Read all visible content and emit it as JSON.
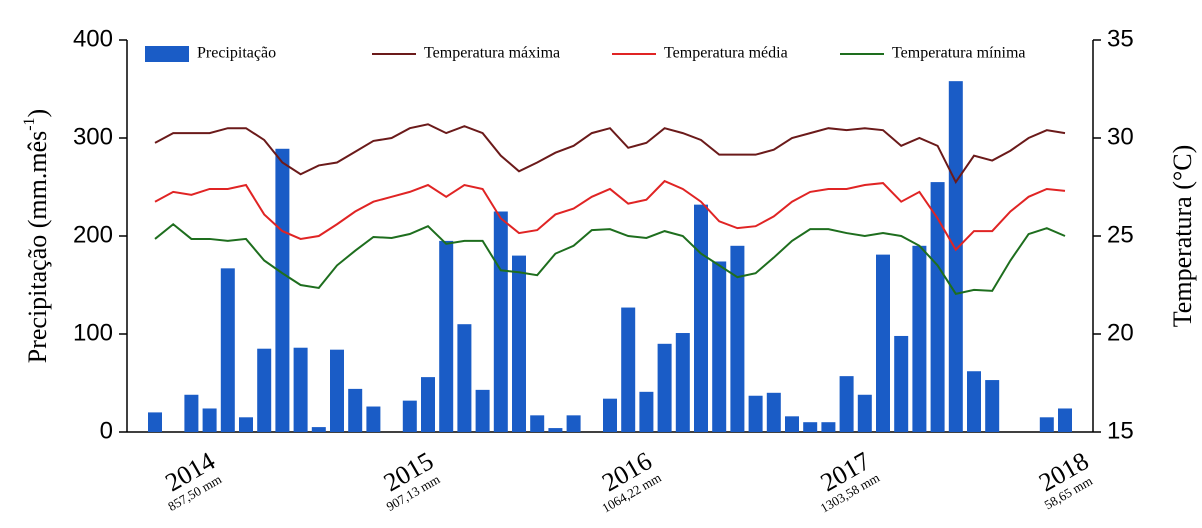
{
  "chart_data": {
    "type": "bar-line",
    "ylabel": {
      "text": "Precipitação (mm.mês",
      "sup": "-1",
      "close": ")"
    },
    "y2label": "Temperatura (°C)",
    "categories": [
      null,
      null,
      "2014",
      null,
      null,
      null,
      null,
      null,
      null,
      null,
      null,
      null,
      null,
      null,
      "2015",
      null,
      null,
      null,
      null,
      null,
      null,
      null,
      null,
      null,
      null,
      null,
      "2016",
      null,
      null,
      null,
      null,
      null,
      null,
      null,
      null,
      null,
      null,
      null,
      "2017",
      null,
      null,
      null,
      null,
      null,
      null,
      null,
      null,
      null,
      null,
      null,
      "2018"
    ],
    "category_sublabels": [
      null,
      null,
      "857,50 mm",
      null,
      null,
      null,
      null,
      null,
      null,
      null,
      null,
      null,
      null,
      null,
      "907,13 mm",
      null,
      null,
      null,
      null,
      null,
      null,
      null,
      null,
      null,
      null,
      null,
      "1064,22 mm",
      null,
      null,
      null,
      null,
      null,
      null,
      null,
      null,
      null,
      null,
      null,
      "1303,58 mm",
      null,
      null,
      null,
      null,
      null,
      null,
      null,
      null,
      null,
      null,
      null,
      "58,65 mm"
    ],
    "ylim": [
      0,
      400
    ],
    "yticks": [
      0,
      100,
      200,
      300,
      400
    ],
    "y2lim": [
      15,
      35
    ],
    "y2ticks": [
      15,
      20,
      25,
      30,
      35
    ],
    "series": [
      {
        "name": "Precipitação",
        "kind": "bar",
        "color": "#1a5cc6",
        "values": [
          20,
          0,
          38,
          24,
          167,
          15,
          85,
          289,
          86,
          5,
          84,
          44,
          26,
          0,
          32,
          56,
          195,
          110,
          43,
          225,
          180,
          17,
          4,
          17,
          0,
          34,
          127,
          41,
          90,
          101,
          232,
          174,
          190,
          37,
          40,
          16,
          10,
          10,
          57,
          38,
          181,
          98,
          190,
          255,
          358,
          62,
          53,
          0,
          0,
          15,
          24
        ]
      },
      {
        "name": "Temperatura máxima",
        "kind": "line",
        "axis": "y2",
        "color": "#6b1a1a",
        "values": [
          29.75,
          30.25,
          30.25,
          30.25,
          30.5,
          30.5,
          29.9,
          28.75,
          28.15,
          28.6,
          28.75,
          29.3,
          29.85,
          30,
          30.5,
          30.7,
          30.25,
          30.6,
          30.25,
          29.1,
          28.3,
          28.75,
          29.25,
          29.6,
          30.25,
          30.5,
          29.5,
          29.75,
          30.5,
          30.25,
          29.9,
          29.15,
          29.15,
          29.15,
          29.4,
          30,
          30.25,
          30.5,
          30.4,
          30.5,
          30.4,
          29.6,
          30,
          29.6,
          27.75,
          29.1,
          28.85,
          29.35,
          30,
          30.4,
          30.25
        ]
      },
      {
        "name": "Temperatura média",
        "kind": "line",
        "axis": "y2",
        "color": "#e02424",
        "values": [
          26.75,
          27.25,
          27.1,
          27.4,
          27.4,
          27.6,
          26.1,
          25.25,
          24.85,
          25,
          25.6,
          26.25,
          26.75,
          27,
          27.25,
          27.6,
          27,
          27.6,
          27.4,
          25.9,
          25.15,
          25.3,
          26.1,
          26.4,
          27,
          27.4,
          26.65,
          26.85,
          27.8,
          27.4,
          26.75,
          25.75,
          25.4,
          25.5,
          26,
          26.75,
          27.25,
          27.4,
          27.4,
          27.6,
          27.7,
          26.75,
          27.25,
          25.9,
          24.3,
          25.25,
          25.25,
          26.25,
          27,
          27.4,
          27.3
        ]
      },
      {
        "name": "Temperatura mínima",
        "kind": "line",
        "axis": "y2",
        "color": "#1e6e1e",
        "values": [
          24.85,
          25.6,
          24.85,
          24.85,
          24.75,
          24.85,
          23.75,
          23.1,
          22.5,
          22.35,
          23.5,
          24.25,
          24.95,
          24.9,
          25.1,
          25.5,
          24.6,
          24.75,
          24.75,
          23.25,
          23.15,
          23,
          24.1,
          24.5,
          25.3,
          25.35,
          25,
          24.9,
          25.25,
          25,
          24.1,
          23.5,
          22.9,
          23.1,
          23.9,
          24.75,
          25.35,
          25.35,
          25.15,
          25,
          25.15,
          25,
          24.5,
          23.5,
          22.05,
          22.25,
          22.2,
          23.75,
          25.1,
          25.4,
          25
        ]
      }
    ]
  }
}
